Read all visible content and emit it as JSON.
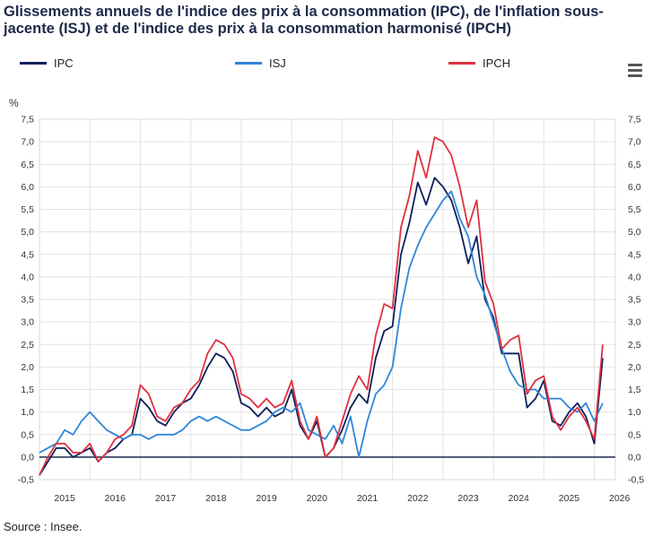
{
  "title": "Glissements annuels de l'indice des prix à la consommation (IPC), de l'inflation sous-jacente (ISJ) et de l'indice des prix à la consommation harmonisé (IPCH)",
  "source": "Source : Insee.",
  "menu_icon": "hamburger-menu-icon",
  "chart_data": {
    "type": "line",
    "title": "Glissements annuels de l'indice des prix à la consommation (IPC), de l'inflation sous-jacente (ISJ) et de l'indice des prix à la consommation harmonisé (IPCH)",
    "ylabel": "%",
    "ylim": [
      -0.5,
      7.5
    ],
    "yticks": [
      -0.5,
      0,
      0.5,
      1,
      1.5,
      2,
      2.5,
      3,
      3.5,
      4,
      4.5,
      5,
      5.5,
      6,
      6.5,
      7,
      7.5
    ],
    "ytick_labels": [
      "-0,5",
      "0,0",
      "0,5",
      "1,0",
      "1,5",
      "2,0",
      "2,5",
      "3,0",
      "3,5",
      "4,0",
      "4,5",
      "5,0",
      "5,5",
      "6,0",
      "6,5",
      "7,0",
      "7,5"
    ],
    "xlim": [
      "2015-01",
      "2026-06"
    ],
    "xtick_labels": [
      "2015",
      "2016",
      "2017",
      "2018",
      "2019",
      "2020",
      "2021",
      "2022",
      "2023",
      "2024",
      "2025",
      "2026"
    ],
    "legend": "top",
    "grid": true,
    "series": [
      {
        "name": "IPC",
        "color": "#0d1f5c",
        "points": [
          [
            "2015-01",
            -0.4
          ],
          [
            "2015-03",
            -0.1
          ],
          [
            "2015-05",
            0.2
          ],
          [
            "2015-07",
            0.2
          ],
          [
            "2015-09",
            0.0
          ],
          [
            "2015-11",
            0.1
          ],
          [
            "2016-01",
            0.2
          ],
          [
            "2016-03",
            -0.1
          ],
          [
            "2016-05",
            0.1
          ],
          [
            "2016-07",
            0.2
          ],
          [
            "2016-09",
            0.4
          ],
          [
            "2016-11",
            0.5
          ],
          [
            "2017-01",
            1.3
          ],
          [
            "2017-03",
            1.1
          ],
          [
            "2017-05",
            0.8
          ],
          [
            "2017-07",
            0.7
          ],
          [
            "2017-09",
            1.0
          ],
          [
            "2017-11",
            1.2
          ],
          [
            "2018-01",
            1.3
          ],
          [
            "2018-03",
            1.6
          ],
          [
            "2018-05",
            2.0
          ],
          [
            "2018-07",
            2.3
          ],
          [
            "2018-09",
            2.2
          ],
          [
            "2018-11",
            1.9
          ],
          [
            "2019-01",
            1.2
          ],
          [
            "2019-03",
            1.1
          ],
          [
            "2019-05",
            0.9
          ],
          [
            "2019-07",
            1.1
          ],
          [
            "2019-09",
            0.9
          ],
          [
            "2019-11",
            1.0
          ],
          [
            "2020-01",
            1.5
          ],
          [
            "2020-03",
            0.7
          ],
          [
            "2020-05",
            0.4
          ],
          [
            "2020-07",
            0.8
          ],
          [
            "2020-09",
            0.0
          ],
          [
            "2020-11",
            0.2
          ],
          [
            "2021-01",
            0.6
          ],
          [
            "2021-03",
            1.1
          ],
          [
            "2021-05",
            1.4
          ],
          [
            "2021-07",
            1.2
          ],
          [
            "2021-09",
            2.2
          ],
          [
            "2021-11",
            2.8
          ],
          [
            "2022-01",
            2.9
          ],
          [
            "2022-03",
            4.5
          ],
          [
            "2022-05",
            5.2
          ],
          [
            "2022-07",
            6.1
          ],
          [
            "2022-09",
            5.6
          ],
          [
            "2022-11",
            6.2
          ],
          [
            "2023-01",
            6.0
          ],
          [
            "2023-03",
            5.7
          ],
          [
            "2023-05",
            5.1
          ],
          [
            "2023-07",
            4.3
          ],
          [
            "2023-09",
            4.9
          ],
          [
            "2023-11",
            3.5
          ],
          [
            "2024-01",
            3.1
          ],
          [
            "2024-03",
            2.3
          ],
          [
            "2024-05",
            2.3
          ],
          [
            "2024-07",
            2.3
          ],
          [
            "2024-09",
            1.1
          ],
          [
            "2024-11",
            1.3
          ],
          [
            "2025-01",
            1.7
          ],
          [
            "2025-03",
            0.8
          ],
          [
            "2025-05",
            0.7
          ],
          [
            "2025-07",
            1.0
          ],
          [
            "2025-09",
            1.2
          ],
          [
            "2025-11",
            0.9
          ],
          [
            "2026-01",
            0.3
          ],
          [
            "2026-03",
            2.2
          ]
        ]
      },
      {
        "name": "ISJ",
        "color": "#2f86d9",
        "points": [
          [
            "2015-01",
            0.1
          ],
          [
            "2015-03",
            0.2
          ],
          [
            "2015-05",
            0.3
          ],
          [
            "2015-07",
            0.6
          ],
          [
            "2015-09",
            0.5
          ],
          [
            "2015-11",
            0.8
          ],
          [
            "2016-01",
            1.0
          ],
          [
            "2016-03",
            0.8
          ],
          [
            "2016-05",
            0.6
          ],
          [
            "2016-07",
            0.5
          ],
          [
            "2016-09",
            0.4
          ],
          [
            "2016-11",
            0.5
          ],
          [
            "2017-01",
            0.5
          ],
          [
            "2017-03",
            0.4
          ],
          [
            "2017-05",
            0.5
          ],
          [
            "2017-07",
            0.5
          ],
          [
            "2017-09",
            0.5
          ],
          [
            "2017-11",
            0.6
          ],
          [
            "2018-01",
            0.8
          ],
          [
            "2018-03",
            0.9
          ],
          [
            "2018-05",
            0.8
          ],
          [
            "2018-07",
            0.9
          ],
          [
            "2018-09",
            0.8
          ],
          [
            "2018-11",
            0.7
          ],
          [
            "2019-01",
            0.6
          ],
          [
            "2019-03",
            0.6
          ],
          [
            "2019-05",
            0.7
          ],
          [
            "2019-07",
            0.8
          ],
          [
            "2019-09",
            1.0
          ],
          [
            "2019-11",
            1.1
          ],
          [
            "2020-01",
            1.0
          ],
          [
            "2020-03",
            1.2
          ],
          [
            "2020-05",
            0.6
          ],
          [
            "2020-07",
            0.5
          ],
          [
            "2020-09",
            0.4
          ],
          [
            "2020-11",
            0.7
          ],
          [
            "2021-01",
            0.3
          ],
          [
            "2021-03",
            0.9
          ],
          [
            "2021-05",
            0.0
          ],
          [
            "2021-07",
            0.8
          ],
          [
            "2021-09",
            1.4
          ],
          [
            "2021-11",
            1.6
          ],
          [
            "2022-01",
            2.0
          ],
          [
            "2022-03",
            3.3
          ],
          [
            "2022-05",
            4.2
          ],
          [
            "2022-07",
            4.7
          ],
          [
            "2022-09",
            5.1
          ],
          [
            "2022-11",
            5.4
          ],
          [
            "2023-01",
            5.7
          ],
          [
            "2023-03",
            5.9
          ],
          [
            "2023-05",
            5.3
          ],
          [
            "2023-07",
            4.9
          ],
          [
            "2023-09",
            4.0
          ],
          [
            "2023-11",
            3.6
          ],
          [
            "2024-01",
            3.0
          ],
          [
            "2024-03",
            2.4
          ],
          [
            "2024-05",
            1.9
          ],
          [
            "2024-07",
            1.6
          ],
          [
            "2024-09",
            1.5
          ],
          [
            "2024-11",
            1.5
          ],
          [
            "2025-01",
            1.3
          ],
          [
            "2025-03",
            1.3
          ],
          [
            "2025-05",
            1.3
          ],
          [
            "2025-07",
            1.1
          ],
          [
            "2025-09",
            1.0
          ],
          [
            "2025-11",
            1.2
          ],
          [
            "2026-01",
            0.8
          ],
          [
            "2026-03",
            1.2
          ]
        ]
      },
      {
        "name": "IPCH",
        "color": "#e03040",
        "points": [
          [
            "2015-01",
            -0.4
          ],
          [
            "2015-03",
            0.0
          ],
          [
            "2015-05",
            0.3
          ],
          [
            "2015-07",
            0.3
          ],
          [
            "2015-09",
            0.1
          ],
          [
            "2015-11",
            0.1
          ],
          [
            "2016-01",
            0.3
          ],
          [
            "2016-03",
            -0.1
          ],
          [
            "2016-05",
            0.1
          ],
          [
            "2016-07",
            0.4
          ],
          [
            "2016-09",
            0.5
          ],
          [
            "2016-11",
            0.7
          ],
          [
            "2017-01",
            1.6
          ],
          [
            "2017-03",
            1.4
          ],
          [
            "2017-05",
            0.9
          ],
          [
            "2017-07",
            0.8
          ],
          [
            "2017-09",
            1.1
          ],
          [
            "2017-11",
            1.2
          ],
          [
            "2018-01",
            1.5
          ],
          [
            "2018-03",
            1.7
          ],
          [
            "2018-05",
            2.3
          ],
          [
            "2018-07",
            2.6
          ],
          [
            "2018-09",
            2.5
          ],
          [
            "2018-11",
            2.2
          ],
          [
            "2019-01",
            1.4
          ],
          [
            "2019-03",
            1.3
          ],
          [
            "2019-05",
            1.1
          ],
          [
            "2019-07",
            1.3
          ],
          [
            "2019-09",
            1.1
          ],
          [
            "2019-11",
            1.2
          ],
          [
            "2020-01",
            1.7
          ],
          [
            "2020-03",
            0.8
          ],
          [
            "2020-05",
            0.4
          ],
          [
            "2020-07",
            0.9
          ],
          [
            "2020-09",
            0.0
          ],
          [
            "2020-11",
            0.2
          ],
          [
            "2021-01",
            0.8
          ],
          [
            "2021-03",
            1.4
          ],
          [
            "2021-05",
            1.8
          ],
          [
            "2021-07",
            1.5
          ],
          [
            "2021-09",
            2.7
          ],
          [
            "2021-11",
            3.4
          ],
          [
            "2022-01",
            3.3
          ],
          [
            "2022-03",
            5.1
          ],
          [
            "2022-05",
            5.8
          ],
          [
            "2022-07",
            6.8
          ],
          [
            "2022-09",
            6.2
          ],
          [
            "2022-11",
            7.1
          ],
          [
            "2023-01",
            7.0
          ],
          [
            "2023-03",
            6.7
          ],
          [
            "2023-05",
            6.0
          ],
          [
            "2023-07",
            5.1
          ],
          [
            "2023-09",
            5.7
          ],
          [
            "2023-11",
            3.9
          ],
          [
            "2024-01",
            3.4
          ],
          [
            "2024-03",
            2.4
          ],
          [
            "2024-05",
            2.6
          ],
          [
            "2024-07",
            2.7
          ],
          [
            "2024-09",
            1.4
          ],
          [
            "2024-11",
            1.7
          ],
          [
            "2025-01",
            1.8
          ],
          [
            "2025-03",
            0.9
          ],
          [
            "2025-05",
            0.6
          ],
          [
            "2025-07",
            0.9
          ],
          [
            "2025-09",
            1.1
          ],
          [
            "2025-11",
            0.8
          ],
          [
            "2026-01",
            0.4
          ],
          [
            "2026-03",
            2.5
          ]
        ]
      }
    ]
  }
}
